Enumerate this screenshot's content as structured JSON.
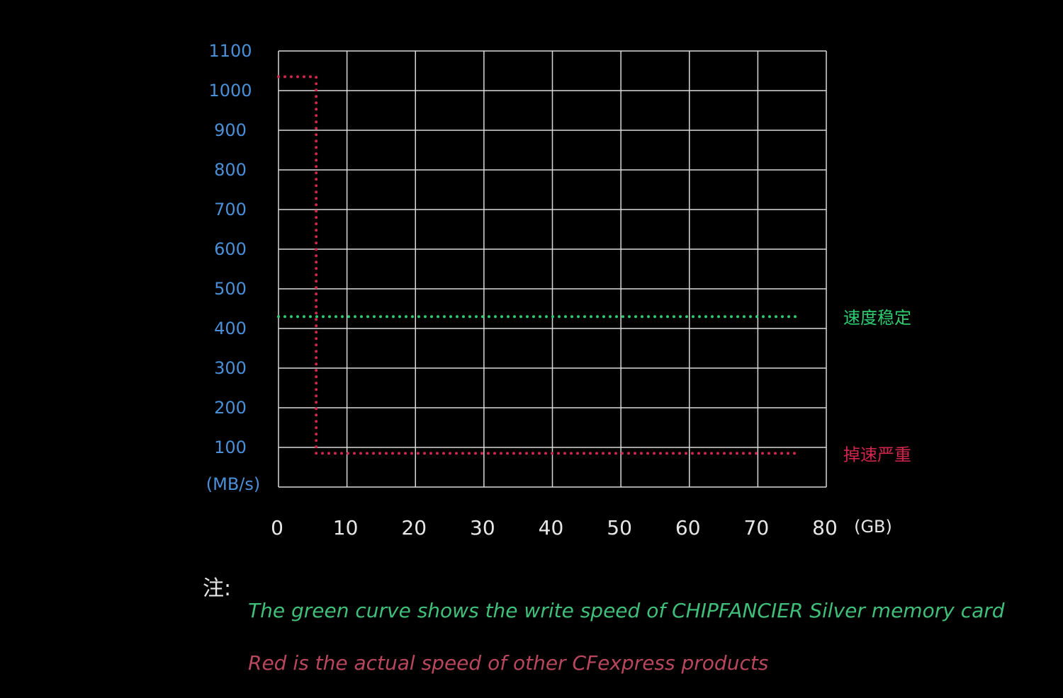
{
  "chart_data": {
    "type": "line",
    "x": [
      0,
      10,
      20,
      30,
      40,
      50,
      60,
      70,
      80
    ],
    "xlabel": "(GB)",
    "ylabel": "(MB/s)",
    "xlim": [
      0,
      80
    ],
    "ylim": [
      0,
      1100
    ],
    "x_ticks": [
      "0",
      "10",
      "20",
      "30",
      "40",
      "50",
      "60",
      "70",
      "80"
    ],
    "y_ticks": [
      "100",
      "200",
      "300",
      "400",
      "500",
      "600",
      "700",
      "800",
      "900",
      "1000",
      "1100"
    ],
    "grid": true,
    "series": [
      {
        "label": "速度稳定",
        "color": "#2ecc71",
        "style": "dotted",
        "points": [
          [
            0,
            430
          ],
          [
            76,
            430
          ]
        ]
      },
      {
        "label": "掉速严重",
        "color": "#d0254d",
        "style": "dotted",
        "points": [
          [
            0,
            1035
          ],
          [
            5.5,
            1035
          ],
          [
            5.5,
            85
          ],
          [
            76,
            85
          ]
        ]
      }
    ]
  },
  "notes": {
    "heading": "注:",
    "green": "The green curve shows the write speed of CHIPFANCIER Silver memory card",
    "red": "Red is the actual speed of other CFexpress products"
  },
  "colors": {
    "background": "#000000",
    "grid": "#d9d9d9",
    "tick_labels": "#4a90d9",
    "x_labels": "#e6e6e6"
  }
}
